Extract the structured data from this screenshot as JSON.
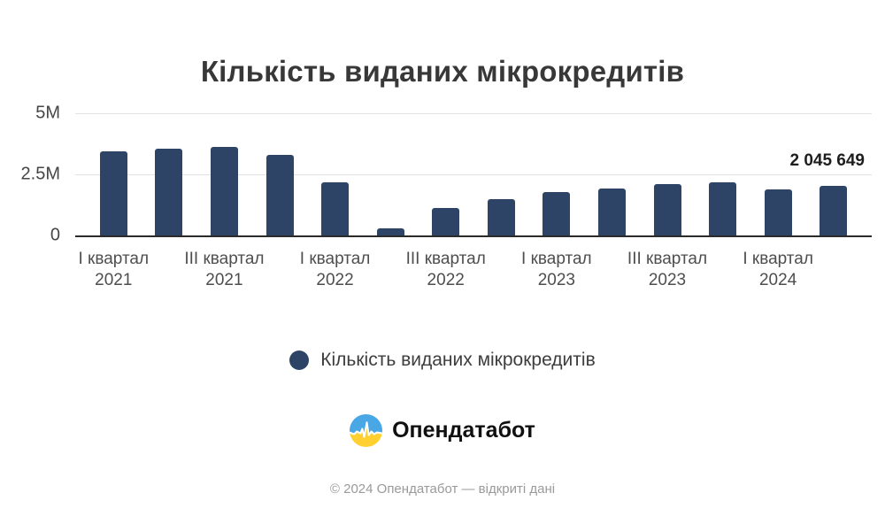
{
  "title": "Кількість виданих мікрокредитів",
  "chart_data": {
    "type": "bar",
    "title": "Кількість виданих мікрокредитів",
    "series_label": "Кількість виданих мікрокредитів",
    "n_bars": 14,
    "values": [
      3450000,
      3560000,
      3640000,
      3290000,
      2190000,
      300000,
      1130000,
      1490000,
      1790000,
      1920000,
      2110000,
      2180000,
      1880000,
      2045649
    ],
    "ylim": [
      0,
      5000000
    ],
    "y_tick_labels": [
      "5M",
      "2.5M",
      "0"
    ],
    "x_ticks": [
      {
        "bar_index": 0,
        "quarter": "І квартал",
        "year": "2021"
      },
      {
        "bar_index": 2,
        "quarter": "ІІІ квартал",
        "year": "2021"
      },
      {
        "bar_index": 4,
        "quarter": "І квартал",
        "year": "2022"
      },
      {
        "bar_index": 6,
        "quarter": "ІІІ квартал",
        "year": "2022"
      },
      {
        "bar_index": 8,
        "quarter": "І квартал",
        "year": "2023"
      },
      {
        "bar_index": 10,
        "quarter": "ІІІ квартал",
        "year": "2023"
      },
      {
        "bar_index": 12,
        "quarter": "І квартал",
        "year": "2024"
      }
    ],
    "annotation": {
      "text": "2 045 649",
      "value": 2045649,
      "bar_index": 13
    },
    "bar_color": "#2e4466",
    "gridline_color": "#e1e1e1",
    "grid": "horizontal",
    "legend_position": "bottom"
  },
  "legend": {
    "label": "Кількість виданих мікрокредитів",
    "marker_color": "#2e4466"
  },
  "branding": {
    "logo_text": "Опендатабот",
    "logo_icon": "opendatabot-pulse-circle",
    "logo_blue": "#4aa7e6",
    "logo_yellow": "#ffd02f"
  },
  "footer": {
    "copyright": "© 2024 Опендатабот — відкриті дані"
  }
}
